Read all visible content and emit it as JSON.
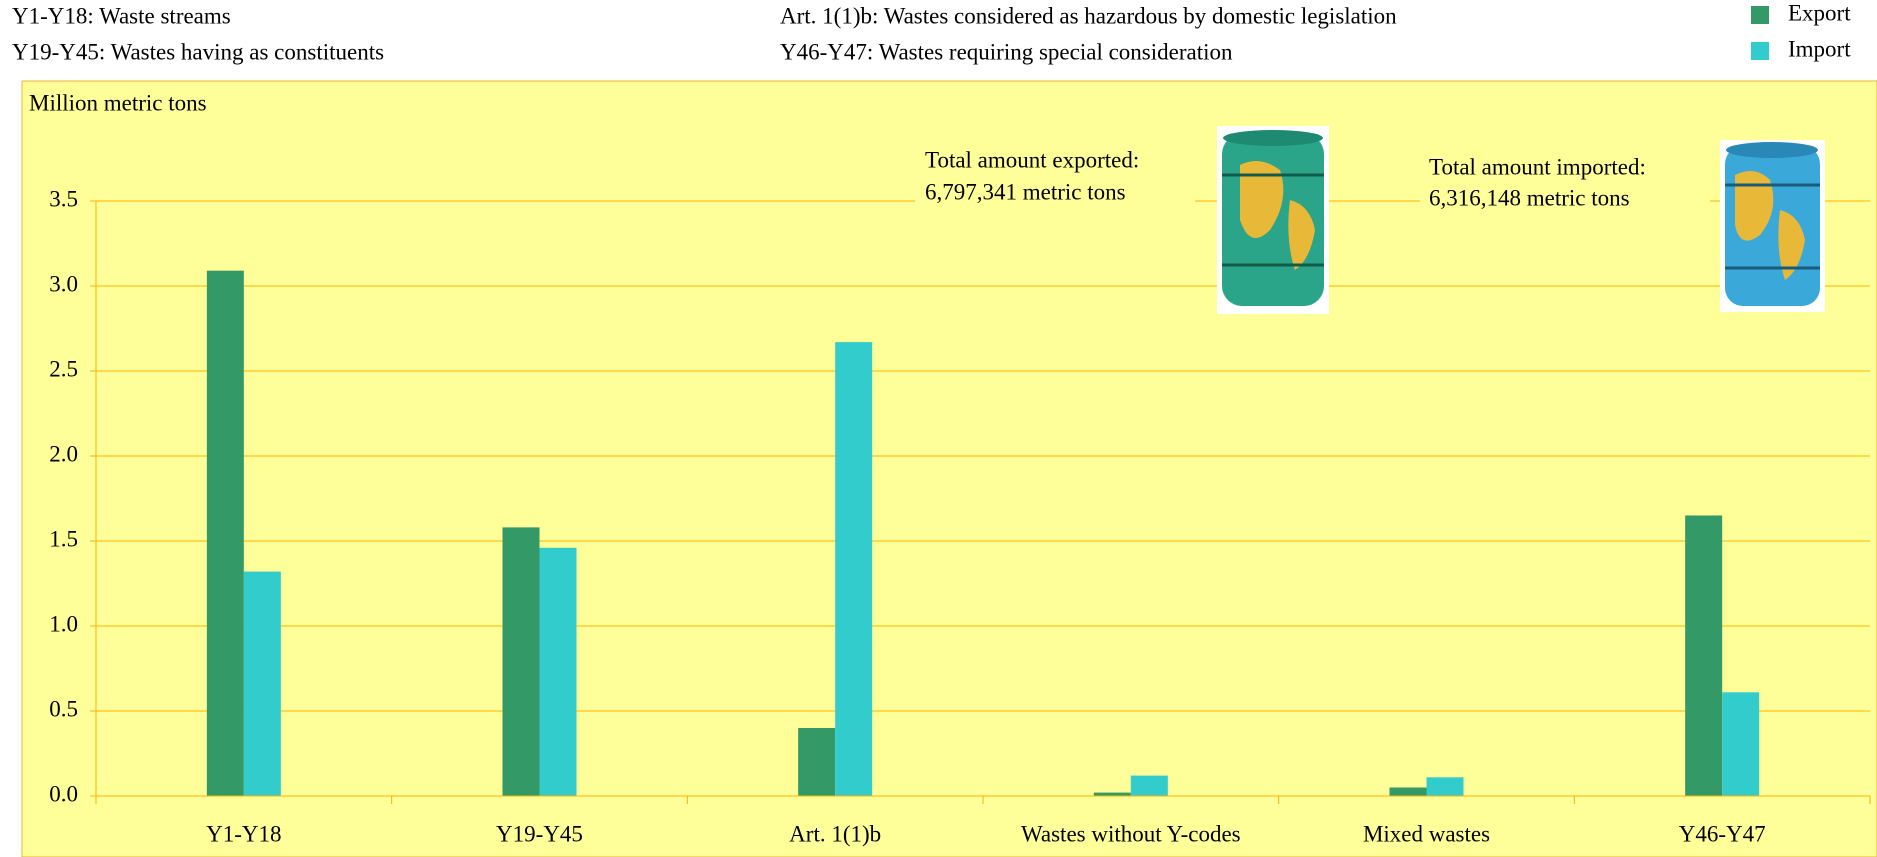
{
  "chart_data": {
    "type": "bar",
    "definitions": [
      "Y1-Y18: Waste streams",
      "Y19-Y45: Wastes having as constituents",
      "Art. 1(1)b: Wastes considered as hazardous by domestic legislation",
      "Y46-Y47: Wastes requiring special consideration"
    ],
    "y_label": "Million metric tons",
    "annotations": [
      [
        "Total amount exported:",
        "6,797,341 metric tons"
      ],
      [
        "Total amount imported:",
        "6,316,148  metric tons"
      ]
    ],
    "categories": [
      "Y1-Y18",
      "Y19-Y45",
      "Art. 1(1)b",
      "Wastes without Y-codes",
      "Mixed wastes",
      "Y46-Y47"
    ],
    "series": [
      {
        "name": "Export",
        "color": "#339966",
        "values": [
          3.09,
          1.58,
          0.4,
          0.02,
          0.05,
          1.65
        ]
      },
      {
        "name": "Import",
        "color": "#33CCCC",
        "values": [
          1.32,
          1.46,
          2.67,
          0.12,
          0.11,
          0.61
        ]
      }
    ],
    "ylim": [
      0,
      3.5
    ],
    "yticks": [
      {
        "value": 0,
        "label": "0.0"
      },
      0.5,
      {
        "value": 1,
        "label": "1.0"
      },
      1.5,
      {
        "value": 2,
        "label": "2.0"
      },
      2.5,
      {
        "value": 3,
        "label": "3.0"
      },
      3.5
    ],
    "grid": true,
    "legend": "top-right"
  }
}
